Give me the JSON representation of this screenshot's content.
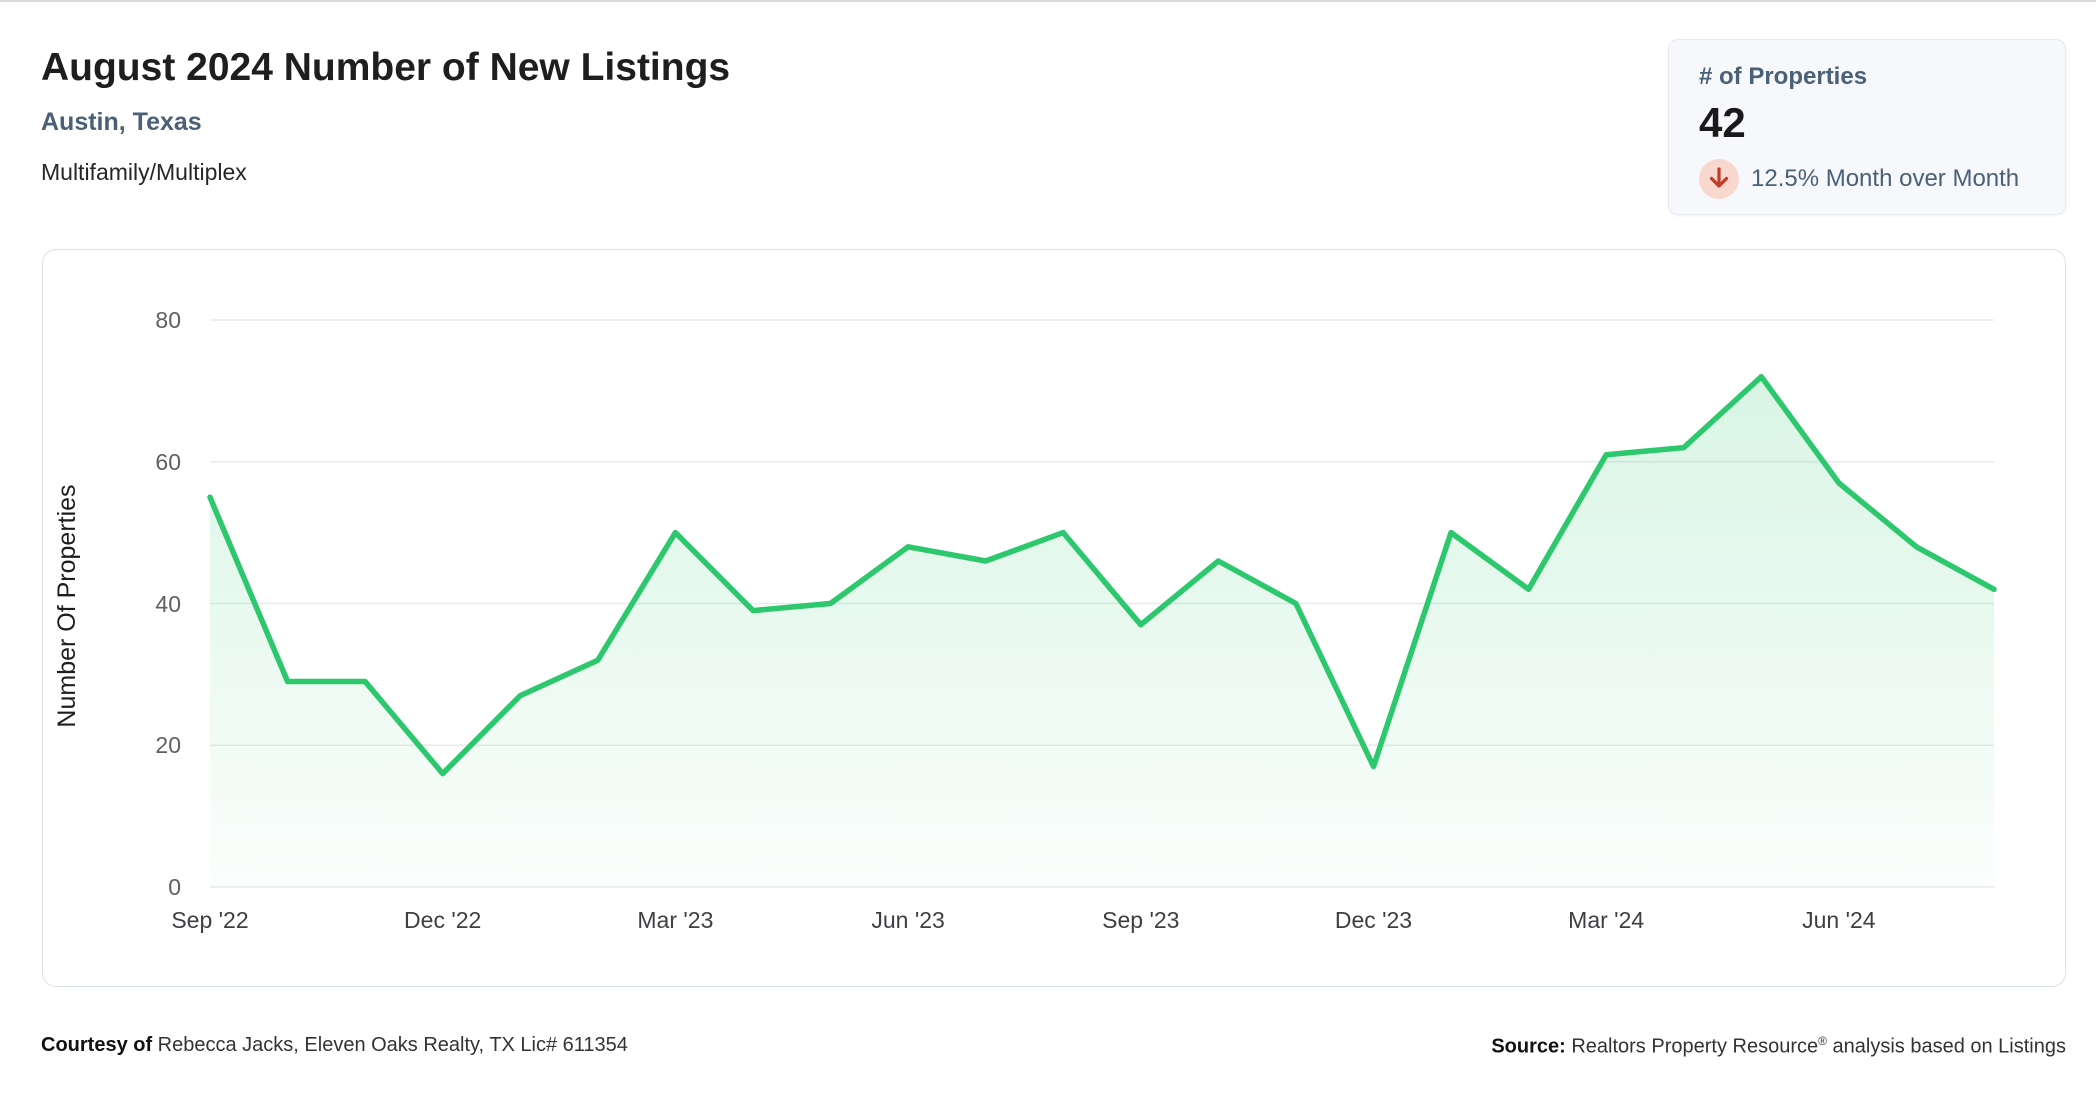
{
  "header": {
    "title": "August 2024 Number of New Listings",
    "location": "Austin, Texas",
    "property_type": "Multifamily/Multiplex"
  },
  "stat_card": {
    "label": "# of Properties",
    "value": "42",
    "change_text": "12.5% Month over Month",
    "change_direction": "down",
    "arrow_color": "#c13b26",
    "arrow_bg_color": "#f8d7cf"
  },
  "chart_data": {
    "type": "area",
    "title": "August 2024 Number of New Listings",
    "xlabel": "",
    "ylabel": "Number Of Properties",
    "ylim": [
      0,
      80
    ],
    "y_tick_step": 20,
    "y_tick_labels": [
      "0",
      "20",
      "40",
      "60",
      "80"
    ],
    "grid": "horizontal",
    "legend": "none",
    "x": [
      "Sep '22",
      "Oct '22",
      "Nov '22",
      "Dec '22",
      "Jan '23",
      "Feb '23",
      "Mar '23",
      "Apr '23",
      "May '23",
      "Jun '23",
      "Jul '23",
      "Aug '23",
      "Sep '23",
      "Oct '23",
      "Nov '23",
      "Dec '23",
      "Jan '24",
      "Feb '24",
      "Mar '24",
      "Apr '24",
      "May '24",
      "Jun '24",
      "Jul '24",
      "Aug '24"
    ],
    "values": [
      55,
      29,
      29,
      16,
      27,
      32,
      50,
      39,
      40,
      48,
      46,
      50,
      37,
      46,
      40,
      17,
      50,
      42,
      61,
      62,
      72,
      57,
      48,
      42
    ],
    "x_tick_indices": [
      0,
      3,
      6,
      9,
      12,
      15,
      18,
      21
    ],
    "line_color": "#2dc76d",
    "fill_top_color": "rgba(45,199,109,0.20)",
    "fill_bottom_color": "rgba(45,199,109,0.02)",
    "grid_color": "#eaeaea"
  },
  "footer": {
    "courtesy_bold": "Courtesy of",
    "courtesy_rest": " Rebecca Jacks, Eleven Oaks Realty, TX Lic# 611354",
    "source_bold": "Source:",
    "source_pre": " Realtors Property Resource",
    "source_sup": "®",
    "source_post": " analysis based on Listings"
  }
}
